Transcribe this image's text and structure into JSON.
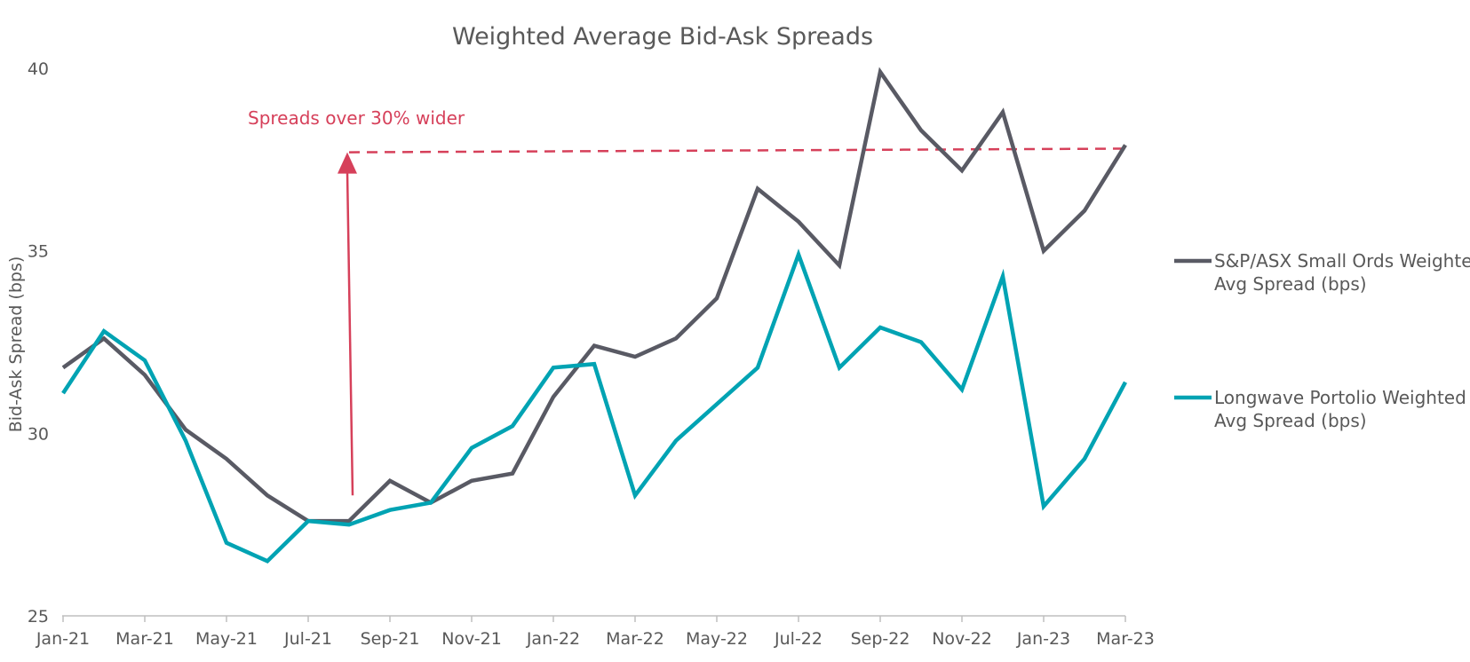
{
  "chart_data": {
    "type": "line",
    "title": "Weighted Average Bid-Ask Spreads",
    "xlabel": "",
    "ylabel": "Bid-Ask Spread (bps)",
    "ylim": [
      25,
      40
    ],
    "yticks": [
      25,
      30,
      35,
      40
    ],
    "grid": false,
    "legend_position": "right",
    "x": [
      "Jan-21",
      "Feb-21",
      "Mar-21",
      "Apr-21",
      "May-21",
      "Jun-21",
      "Jul-21",
      "Aug-21",
      "Sep-21",
      "Oct-21",
      "Nov-21",
      "Dec-21",
      "Jan-22",
      "Feb-22",
      "Mar-22",
      "Apr-22",
      "May-22",
      "Jun-22",
      "Jul-22",
      "Aug-22",
      "Sep-22",
      "Oct-22",
      "Nov-22",
      "Dec-22",
      "Jan-23",
      "Feb-23",
      "Mar-23"
    ],
    "xtick_labels": [
      "Jan-21",
      "Mar-21",
      "May-21",
      "Jul-21",
      "Sep-21",
      "Nov-21",
      "Jan-22",
      "Mar-22",
      "May-22",
      "Jul-22",
      "Sep-22",
      "Nov-22",
      "Jan-23",
      "Mar-23"
    ],
    "series": [
      {
        "name": "S&P/ASX Small Ords Weighted Avg Spread (bps)",
        "legend_lines": [
          "S&P/ASX Small Ords Weighted",
          "Avg Spread (bps)"
        ],
        "color": "#595a64",
        "values": [
          31.8,
          32.6,
          31.6,
          30.1,
          29.3,
          28.3,
          27.6,
          27.6,
          28.7,
          28.1,
          28.7,
          28.9,
          31.0,
          32.4,
          32.1,
          32.6,
          33.7,
          36.7,
          35.8,
          34.6,
          39.9,
          38.3,
          37.2,
          38.8,
          35.0,
          36.1,
          37.9
        ],
        "series_order": 0
      },
      {
        "name": "Longwave Portolio Weighted Avg Spread (bps)",
        "legend_lines": [
          "Longwave Portolio Weighted",
          "Avg Spread (bps)"
        ],
        "color": "#00a3b3",
        "values": [
          31.1,
          32.8,
          32.0,
          29.8,
          27.0,
          26.5,
          27.6,
          27.5,
          27.9,
          28.1,
          29.6,
          30.2,
          31.8,
          31.9,
          28.3,
          29.8,
          30.8,
          31.8,
          34.9,
          31.8,
          32.9,
          32.5,
          31.2,
          34.3,
          28.0,
          29.3,
          31.4
        ],
        "series_order": 1
      }
    ],
    "annotations": [
      {
        "text": "Spreads over 30% wider",
        "color": "#d6405a",
        "arrow_x": "Aug-21",
        "arrow_from": 28.3,
        "arrow_to": 37.7,
        "dashed_line_from_x": "Aug-21",
        "dashed_line_to_x": "Mar-23",
        "dashed_line_y_start": 37.7,
        "dashed_line_y_end": 37.8
      }
    ]
  }
}
